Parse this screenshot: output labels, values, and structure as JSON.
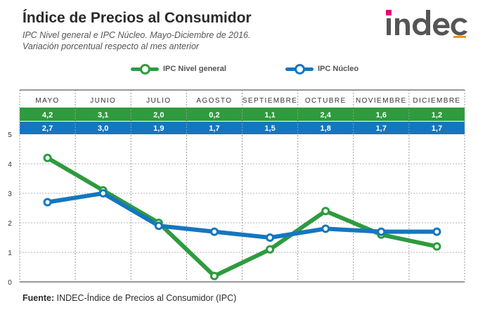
{
  "header": {
    "title": "Índice de Precios al Consumidor",
    "subtitle_1": "IPC Nivel general e IPC Núcleo. Mayo-Diciembre de 2016.",
    "subtitle_2": "Variación porcentual respecto al mes anterior"
  },
  "logo": {
    "text": "indec"
  },
  "footer": {
    "label": "Fuente:",
    "text": " INDEC-Índice de Precios al Consumidor (IPC)"
  },
  "chart_data": {
    "type": "line",
    "categories": [
      "MAYO",
      "JUNIO",
      "JULIO",
      "AGOSTO",
      "SEPTIEMBRE",
      "OCTUBRE",
      "NOVIEMBRE",
      "DICIEMBRE"
    ],
    "series": [
      {
        "name": "IPC Nivel general",
        "color": "#2e9b3e",
        "values": [
          4.2,
          3.1,
          2.0,
          0.2,
          1.1,
          2.4,
          1.6,
          1.2
        ],
        "labels": [
          "4,2",
          "3,1",
          "2,0",
          "0,2",
          "1,1",
          "2,4",
          "1,6",
          "1,2"
        ]
      },
      {
        "name": "IPC Núcleo",
        "color": "#1576c0",
        "values": [
          2.7,
          3.0,
          1.9,
          1.7,
          1.5,
          1.8,
          1.7,
          1.7
        ],
        "labels": [
          "2,7",
          "3,0",
          "1,9",
          "1,7",
          "1,5",
          "1,8",
          "1,7",
          "1,7"
        ]
      }
    ],
    "yticks": [
      "0",
      "1",
      "2",
      "3",
      "4",
      "5"
    ],
    "ylim": [
      0,
      5
    ],
    "grid": true,
    "legend_position": "top"
  }
}
